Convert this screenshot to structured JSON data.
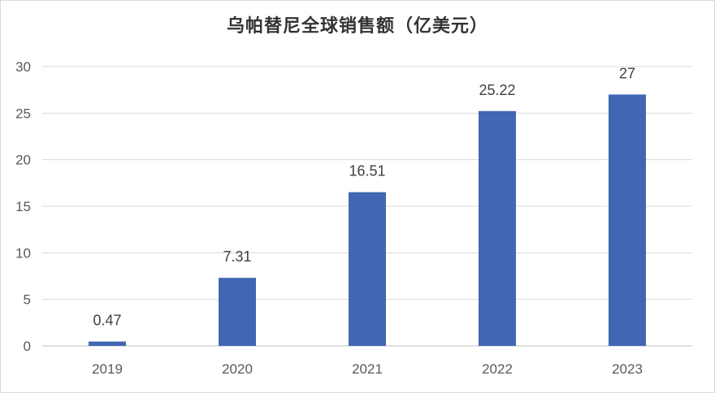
{
  "chart_data": {
    "type": "bar",
    "title": "乌帕替尼全球销售额（亿美元）",
    "categories": [
      "2019",
      "2020",
      "2021",
      "2022",
      "2023"
    ],
    "series": [
      {
        "values": [
          0.47,
          7.31,
          16.51,
          25.22,
          27
        ]
      }
    ],
    "data_labels": [
      "0.47",
      "7.31",
      "16.51",
      "25.22",
      "27"
    ],
    "y_ticks": [
      "0",
      "5",
      "10",
      "15",
      "20",
      "25",
      "30"
    ],
    "ylim": [
      0,
      30
    ],
    "grid": true,
    "legend": "none",
    "bar_color": "#4066b4",
    "grid_color": "#d9d9d9",
    "axis_color": "#bfbfbf"
  }
}
